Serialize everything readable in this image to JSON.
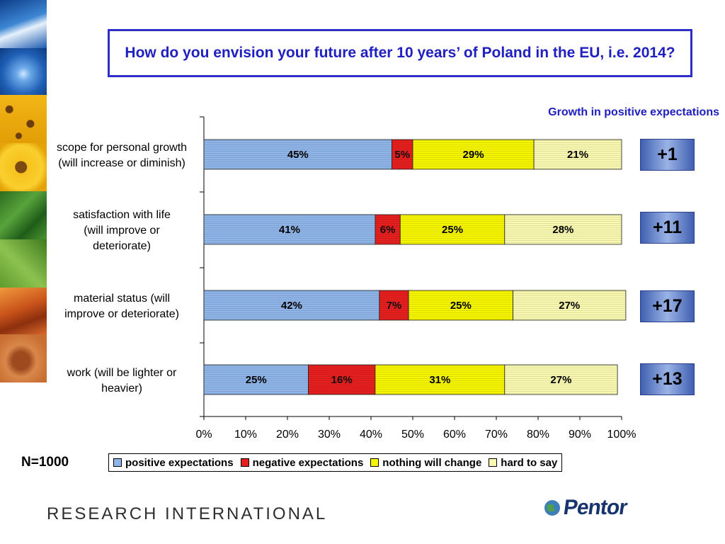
{
  "title": "How do you envision your future after 10 years’ of Poland in the EU, i.e. 2014?",
  "growth_header": "Growth in positive expectations",
  "growth_values": [
    "+1",
    "+11",
    "+17",
    "+13"
  ],
  "sample_size": "N=1000",
  "logos": {
    "left": "RESEARCH INTERNATIONAL",
    "right": "Pentor"
  },
  "colors": {
    "positive": "#8fb4e8",
    "negative": "#e51e1e",
    "nothing": "#f5f500",
    "hard": "#f8f8b0",
    "title": "#2020c0"
  },
  "chart_data": {
    "type": "bar",
    "orientation": "horizontal",
    "stacked": true,
    "categories": [
      "scope for personal growth (will increase or diminish)",
      "satisfaction with life (will improve or deteriorate)",
      "material status (will improve or deteriorate)",
      "work (will be lighter or heavier)"
    ],
    "series": [
      {
        "name": "positive expectations",
        "values": [
          45,
          41,
          42,
          25
        ]
      },
      {
        "name": "negative expectations",
        "values": [
          5,
          6,
          7,
          16
        ]
      },
      {
        "name": "nothing will change",
        "values": [
          29,
          25,
          25,
          31
        ]
      },
      {
        "name": "hard to say",
        "values": [
          21,
          28,
          27,
          27
        ]
      }
    ],
    "data_labels": [
      [
        "45%",
        "5%",
        "29%",
        "21%"
      ],
      [
        "41%",
        "6%",
        "25%",
        "28%"
      ],
      [
        "42%",
        "7%",
        "25%",
        "27%"
      ],
      [
        "25%",
        "16%",
        "31%",
        "27%"
      ]
    ],
    "xlim": [
      0,
      100
    ],
    "xticks": [
      "0%",
      "10%",
      "20%",
      "30%",
      "40%",
      "50%",
      "60%",
      "70%",
      "80%",
      "90%",
      "100%"
    ],
    "legend": "bottom",
    "grid": false
  }
}
